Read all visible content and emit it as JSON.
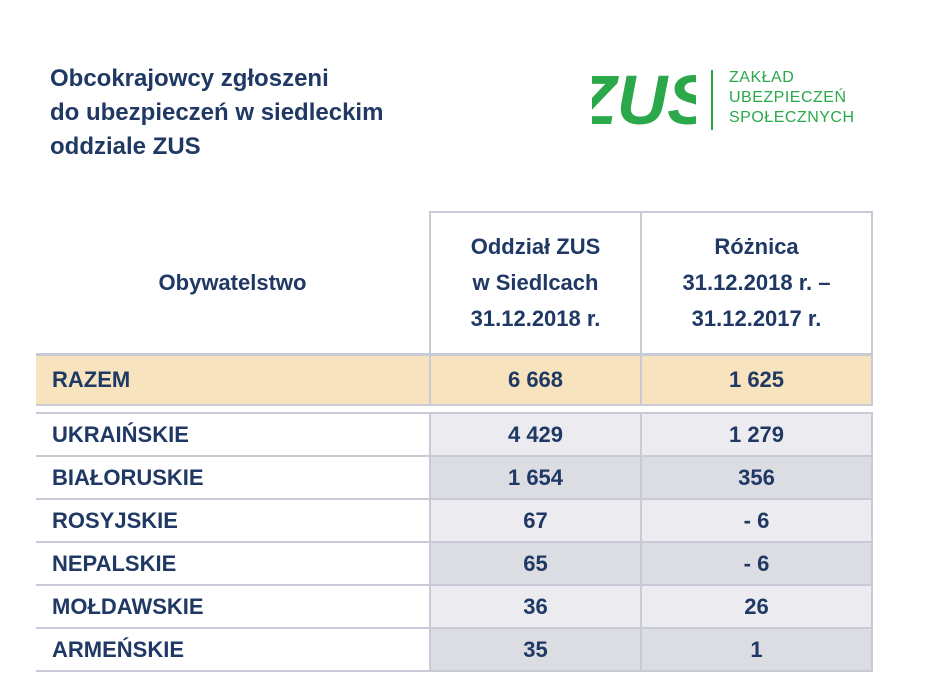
{
  "title": {
    "line1": "Obcokrajowcy zgłoszeni",
    "line2": "do ubezpieczeń w siedleckim",
    "line3": "oddziale ZUS"
  },
  "logo": {
    "mark": "ZUS",
    "text_line1": "ZAKŁAD",
    "text_line2": "UBEZPIECZEŃ",
    "text_line3": "SPOŁECZNYCH",
    "color": "#2aa84a"
  },
  "table": {
    "header": {
      "col1": "Obywatelstwo",
      "col2": [
        "Oddział ZUS",
        "w Siedlcach",
        "31.12.2018 r."
      ],
      "col3": [
        "Różnica",
        "31.12.2018 r. –",
        "31.12.2017 r."
      ]
    },
    "total": {
      "label": "RAZEM",
      "value": "6 668",
      "diff": "1 625"
    },
    "rows": [
      {
        "label": "UKRAIŃSKIE",
        "value": "4 429",
        "diff": "1 279"
      },
      {
        "label": "BIAŁORUSKIE",
        "value": "1 654",
        "diff": "356"
      },
      {
        "label": "ROSYJSKIE",
        "value": "67",
        "diff": "- 6"
      },
      {
        "label": "NEPALSKIE",
        "value": "65",
        "diff": "- 6"
      },
      {
        "label": "MOŁDAWSKIE",
        "value": "36",
        "diff": "26"
      },
      {
        "label": "ARMEŃSKIE",
        "value": "35",
        "diff": "1"
      }
    ],
    "colors": {
      "text": "#1f3864",
      "total_bg": "#f7e4bf",
      "cell_bg": "#ececf0",
      "border": "#c8cbd6"
    }
  }
}
